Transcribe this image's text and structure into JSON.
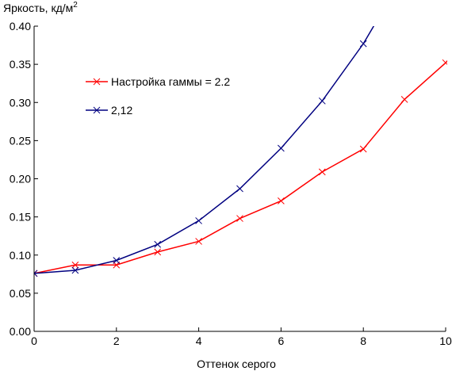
{
  "chart_data": {
    "type": "line",
    "ylabel": "Яркость, кд/м",
    "ylabel_sup": "2",
    "xlabel": "Оттенок серого",
    "xlim": [
      0,
      10
    ],
    "ylim": [
      0,
      0.4
    ],
    "x_ticks": [
      "0",
      "2",
      "4",
      "6",
      "8",
      "10"
    ],
    "y_ticks": [
      "0.00",
      "0.05",
      "0.10",
      "0.15",
      "0.20",
      "0.25",
      "0.30",
      "0.35",
      "0.40"
    ],
    "grid": false,
    "legend_position": "upper-left",
    "series": [
      {
        "name": "Настройка гаммы = 2.2",
        "color": "#ff0000",
        "marker": "x",
        "x": [
          0,
          1,
          2,
          3,
          4,
          5,
          6,
          7,
          8,
          9,
          10
        ],
        "y": [
          0.076,
          0.087,
          0.087,
          0.104,
          0.118,
          0.148,
          0.171,
          0.209,
          0.239,
          0.304,
          0.352
        ]
      },
      {
        "name": "2,12",
        "color": "#000080",
        "marker": "x",
        "x": [
          0,
          1,
          2,
          3,
          4,
          5,
          6,
          7,
          8
        ],
        "y": [
          0.076,
          0.08,
          0.093,
          0.114,
          0.145,
          0.187,
          0.24,
          0.302,
          0.377
        ]
      }
    ]
  }
}
